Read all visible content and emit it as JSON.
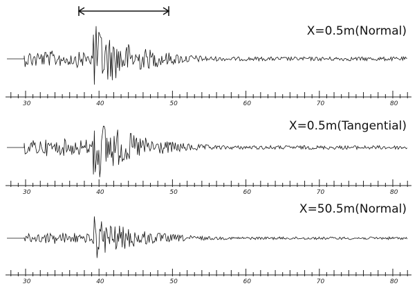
{
  "panels": [
    {
      "label": "X=0.5m(Normal)",
      "ticks": [
        "30",
        "40",
        "50",
        "60",
        "70",
        "80"
      ]
    },
    {
      "label": "X=0.5m(Tangential)",
      "ticks": [
        "30",
        "40",
        "50",
        "60",
        "70",
        "80"
      ]
    },
    {
      "label": "X=50.5m(Normal)",
      "ticks": [
        "30",
        "40",
        "50",
        "60",
        "70",
        "80"
      ]
    }
  ]
}
